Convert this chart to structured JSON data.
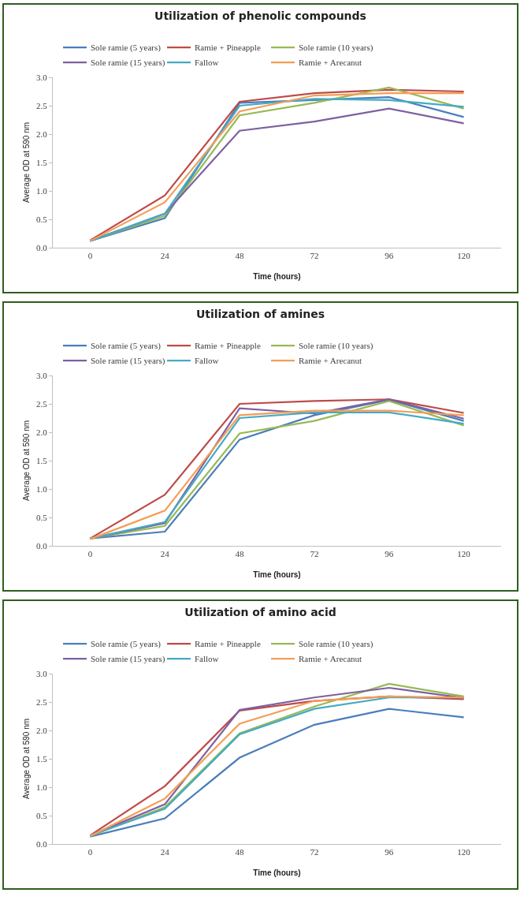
{
  "chart_data": [
    {
      "type": "line",
      "title": "Utilization of phenolic compounds",
      "xlabel": "Time (hours)",
      "ylabel": "Average OD at 590 nm",
      "categories": [
        "0",
        "24",
        "48",
        "72",
        "96",
        "120"
      ],
      "ylim": [
        0,
        3
      ],
      "yticks": [
        {
          "value": 0,
          "label": "0.0"
        },
        {
          "value": 0.5,
          "label": "0.5"
        },
        {
          "value": 1,
          "label": "1.0"
        },
        {
          "value": 1.5,
          "label": "1.5"
        },
        {
          "value": 2,
          "label": "2.0"
        },
        {
          "value": 2.5,
          "label": "2.5"
        },
        {
          "value": 3,
          "label": "3.0"
        }
      ],
      "grid": false,
      "legend": "top",
      "marker": "none",
      "line_style": "solid",
      "series": [
        {
          "name": "Sole ramie (5 years)",
          "color": "#4a7ebb",
          "values": [
            0.12,
            0.52,
            2.55,
            2.6,
            2.65,
            2.3
          ]
        },
        {
          "name": "Ramie + Pineapple",
          "color": "#be4b48",
          "values": [
            0.13,
            0.92,
            2.57,
            2.72,
            2.78,
            2.75
          ]
        },
        {
          "name": "Sole ramie (10 years)",
          "color": "#98b954",
          "values": [
            0.12,
            0.56,
            2.33,
            2.55,
            2.82,
            2.45
          ]
        },
        {
          "name": "Sole ramie (15 years)",
          "color": "#7d60a0",
          "values": [
            0.12,
            0.6,
            2.06,
            2.22,
            2.45,
            2.19
          ]
        },
        {
          "name": "Fallow",
          "color": "#46aac5",
          "values": [
            0.12,
            0.6,
            2.5,
            2.62,
            2.6,
            2.48
          ]
        },
        {
          "name": "Ramie + Arecanut",
          "color": "#f59d56",
          "values": [
            0.12,
            0.8,
            2.4,
            2.68,
            2.72,
            2.72
          ]
        }
      ]
    },
    {
      "type": "line",
      "title": "Utilization of amines",
      "xlabel": "Time (hours)",
      "ylabel": "Average OD at 590 nm",
      "categories": [
        "0",
        "24",
        "48",
        "72",
        "96",
        "120"
      ],
      "ylim": [
        0,
        3
      ],
      "yticks": [
        {
          "value": 0,
          "label": "0.0"
        },
        {
          "value": 0.5,
          "label": "0.5"
        },
        {
          "value": 1,
          "label": "1.0"
        },
        {
          "value": 1.5,
          "label": "1.5"
        },
        {
          "value": 2,
          "label": "2.0"
        },
        {
          "value": 2.5,
          "label": "2.5"
        },
        {
          "value": 3,
          "label": "3.0"
        }
      ],
      "grid": false,
      "legend": "top",
      "marker": "none",
      "line_style": "solid",
      "series": [
        {
          "name": "Sole ramie (5 years)",
          "color": "#4a7ebb",
          "values": [
            0.13,
            0.25,
            1.87,
            2.3,
            2.57,
            2.2
          ]
        },
        {
          "name": "Ramie + Pineapple",
          "color": "#be4b48",
          "values": [
            0.13,
            0.9,
            2.5,
            2.55,
            2.58,
            2.34
          ]
        },
        {
          "name": "Sole ramie (10 years)",
          "color": "#98b954",
          "values": [
            0.13,
            0.35,
            1.98,
            2.2,
            2.55,
            2.12
          ]
        },
        {
          "name": "Sole ramie (15 years)",
          "color": "#7d60a0",
          "values": [
            0.13,
            0.4,
            2.42,
            2.33,
            2.58,
            2.24
          ]
        },
        {
          "name": "Fallow",
          "color": "#46aac5",
          "values": [
            0.13,
            0.42,
            2.25,
            2.35,
            2.35,
            2.15
          ]
        },
        {
          "name": "Ramie + Arecanut",
          "color": "#f59d56",
          "values": [
            0.12,
            0.62,
            2.3,
            2.38,
            2.38,
            2.3
          ]
        }
      ]
    },
    {
      "type": "line",
      "title": "Utilization of amino acid",
      "xlabel": "Time (hours)",
      "ylabel": "Average OD at 590 nm",
      "categories": [
        "0",
        "24",
        "48",
        "72",
        "96",
        "120"
      ],
      "ylim": [
        0,
        3
      ],
      "yticks": [
        {
          "value": 0,
          "label": "0.0"
        },
        {
          "value": 0.5,
          "label": "0.5"
        },
        {
          "value": 1,
          "label": "1.0"
        },
        {
          "value": 1.5,
          "label": "1.5"
        },
        {
          "value": 2,
          "label": "2.0"
        },
        {
          "value": 2.5,
          "label": "2.5"
        },
        {
          "value": 3,
          "label": "3.0"
        }
      ],
      "grid": false,
      "legend": "top",
      "marker": "none",
      "line_style": "solid",
      "series": [
        {
          "name": "Sole ramie (5 years)",
          "color": "#4a7ebb",
          "values": [
            0.13,
            0.45,
            1.52,
            2.1,
            2.38,
            2.23
          ]
        },
        {
          "name": "Ramie + Pineapple",
          "color": "#be4b48",
          "values": [
            0.15,
            1.02,
            2.35,
            2.52,
            2.6,
            2.55
          ]
        },
        {
          "name": "Sole ramie (10 years)",
          "color": "#98b954",
          "values": [
            0.14,
            0.65,
            1.95,
            2.42,
            2.82,
            2.6
          ]
        },
        {
          "name": "Sole ramie (15 years)",
          "color": "#7d60a0",
          "values": [
            0.15,
            0.7,
            2.36,
            2.58,
            2.75,
            2.57
          ]
        },
        {
          "name": "Fallow",
          "color": "#46aac5",
          "values": [
            0.15,
            0.62,
            1.93,
            2.38,
            2.58,
            2.58
          ]
        },
        {
          "name": "Ramie + Arecanut",
          "color": "#f59d56",
          "values": [
            0.14,
            0.8,
            2.12,
            2.52,
            2.6,
            2.58
          ]
        }
      ]
    }
  ]
}
